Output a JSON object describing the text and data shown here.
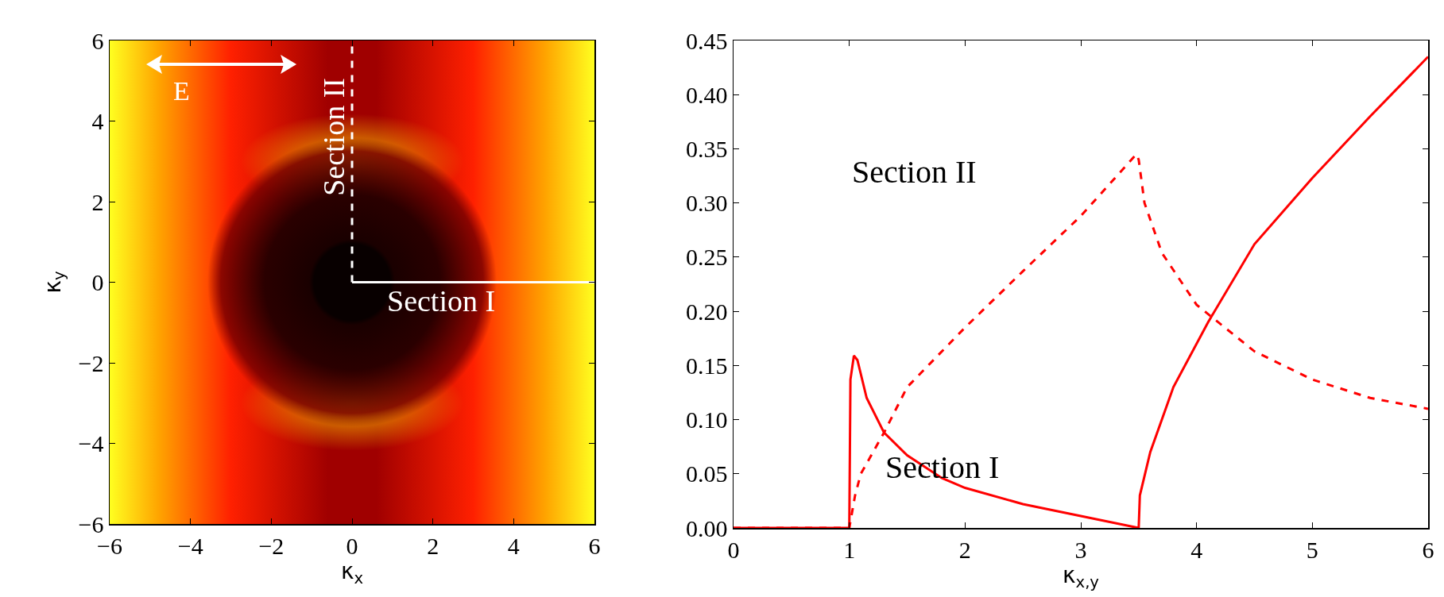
{
  "chart_data": [
    {
      "type": "line",
      "xlabel": "κ$_{x}$",
      "ylabel": "κ$_{y}$",
      "xlim": [
        -6,
        6
      ],
      "ylim": [
        -6,
        6
      ],
      "xticks": [
        {
          "value": -6,
          "label": "−6"
        },
        {
          "value": -4,
          "label": "−4"
        },
        {
          "value": -2,
          "label": "−2"
        },
        0,
        2,
        4,
        6
      ],
      "yticks": [
        {
          "value": -6,
          "label": "−6"
        },
        {
          "value": -4,
          "label": "−4"
        },
        {
          "value": -2,
          "label": "−2"
        },
        0,
        2,
        4,
        6
      ],
      "series": [
        {
          "color": "#ffffff",
          "line_style": "solid",
          "x": [
            0,
            6
          ],
          "values": [
            0,
            0
          ]
        },
        {
          "color": "#ffffff",
          "line_style": "dashed",
          "x": [
            0,
            0
          ],
          "values": [
            0,
            6
          ]
        }
      ],
      "annotations": [
        {
          "text": "Section I",
          "x": 2.2,
          "y": 0
        },
        {
          "text": "Section II",
          "x": 0,
          "y": 3.6
        },
        "E⃗"
      ]
    },
    {
      "type": "line",
      "xlabel": "κ$_{x,y}$",
      "xlim": [
        0,
        6
      ],
      "ylim": [
        0,
        0.45
      ],
      "xticks": [
        0,
        1,
        2,
        3,
        4,
        5,
        6
      ],
      "yticks": [
        {
          "value": 0,
          "label": "0.00"
        },
        {
          "value": 0.05,
          "label": "0.05"
        },
        {
          "value": 0.1,
          "label": "0.10"
        },
        {
          "value": 0.15,
          "label": "0.15"
        },
        {
          "value": 0.2,
          "label": "0.20"
        },
        {
          "value": 0.25,
          "label": "0.25"
        },
        {
          "value": 0.3,
          "label": "0.30"
        },
        {
          "value": 0.35,
          "label": "0.35"
        },
        {
          "value": 0.4,
          "label": "0.40"
        },
        {
          "value": 0.45,
          "label": "0.45"
        }
      ],
      "series": [
        {
          "color": "#ff0000",
          "line_style": "solid",
          "x": [
            0,
            0.98,
            1.0,
            1.01,
            1.04,
            1.07,
            1.15,
            1.3,
            1.5,
            1.8,
            2.0,
            2.5,
            3.0,
            3.5,
            3.51,
            3.6,
            3.8,
            4.1,
            4.5,
            5.0,
            5.5,
            6.0
          ],
          "values": [
            0,
            0,
            0,
            0.137,
            0.159,
            0.155,
            0.12,
            0.088,
            0.067,
            0.046,
            0.037,
            0.022,
            0.011,
            0,
            0.03,
            0.07,
            0.13,
            0.19,
            0.262,
            0.323,
            0.38,
            0.435
          ]
        },
        {
          "color": "#ff0000",
          "line_style": "dashed",
          "x": [
            0,
            1.0,
            1.05,
            1.1,
            1.3,
            1.5,
            2.0,
            2.5,
            3.0,
            3.48,
            3.5,
            3.55,
            3.7,
            4.0,
            4.5,
            5.0,
            5.5,
            6.0
          ],
          "values": [
            0,
            0,
            0.03,
            0.05,
            0.088,
            0.13,
            0.185,
            0.237,
            0.288,
            0.345,
            0.34,
            0.3,
            0.254,
            0.206,
            0.163,
            0.137,
            0.12,
            0.11
          ]
        }
      ],
      "annotations": [
        "Section II",
        "Section I"
      ]
    }
  ]
}
